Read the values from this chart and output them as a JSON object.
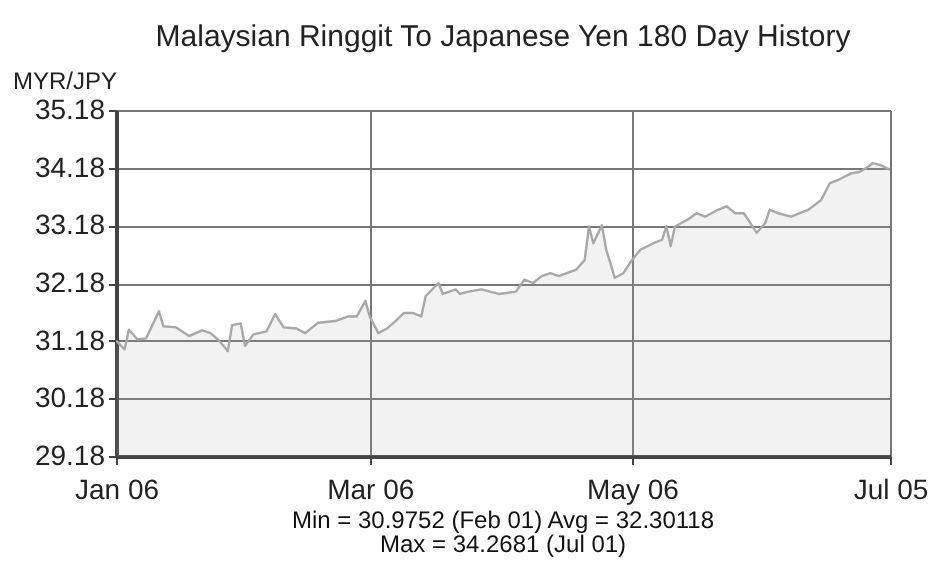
{
  "chart_data": {
    "type": "area",
    "title": "Malaysian Ringgit To Japanese Yen 180 Day History",
    "ylabel": "MYR/JPY",
    "annotations": [
      "Min = 30.9752 (Feb 01) Avg = 32.30118",
      "Max = 34.2681 (Jul 01)"
    ],
    "x": [
      "--01-06",
      "--01-08",
      "--01-09",
      "--01-11",
      "--01-13",
      "--01-16",
      "--01-17",
      "--01-20",
      "--01-23",
      "--01-26",
      "--01-28",
      "--01-30",
      "--02-01",
      "--02-02",
      "--02-04",
      "--02-05",
      "--02-07",
      "--02-10",
      "--02-12",
      "--02-14",
      "--02-17",
      "--02-19",
      "--02-22",
      "--02-26",
      "--03-01",
      "--03-03",
      "--03-05",
      "--03-06",
      "--03-08",
      "--03-10",
      "--03-12",
      "--03-14",
      "--03-16",
      "--03-18",
      "--03-19",
      "--03-22",
      "--03-23",
      "--03-26",
      "--03-27",
      "--03-29",
      "--04-01",
      "--04-05",
      "--04-09",
      "--04-11",
      "--04-13",
      "--04-15",
      "--04-17",
      "--04-19",
      "--04-23",
      "--04-25",
      "--04-26",
      "--04-27",
      "--04-29",
      "--04-30",
      "--05-02",
      "--05-04",
      "--05-06",
      "--05-08",
      "--05-11",
      "--05-13",
      "--05-14",
      "--05-15",
      "--05-16",
      "--05-19",
      "--05-21",
      "--05-23",
      "--05-26",
      "--05-28",
      "--05-30",
      "--06-01",
      "--06-02",
      "--06-04",
      "--06-06",
      "--06-07",
      "--06-09",
      "--06-12",
      "--06-14",
      "--06-16",
      "--06-19",
      "--06-21",
      "--06-23",
      "--06-26",
      "--06-28",
      "--06-30",
      "--07-01",
      "--07-03",
      "--07-05"
    ],
    "series": [
      {
        "color": "#a8a8a8",
        "values": [
          31.18,
          31.03,
          31.37,
          31.2,
          31.22,
          31.69,
          31.43,
          31.41,
          31.26,
          31.36,
          31.31,
          31.18,
          31.0,
          31.45,
          31.48,
          31.09,
          31.29,
          31.34,
          31.64,
          31.41,
          31.39,
          31.31,
          31.49,
          31.52,
          31.6,
          31.6,
          31.87,
          31.6,
          31.31,
          31.39,
          31.52,
          31.66,
          31.66,
          31.6,
          31.95,
          32.18,
          31.99,
          32.07,
          31.99,
          32.03,
          32.07,
          31.99,
          32.03,
          32.24,
          32.18,
          32.3,
          32.35,
          32.3,
          32.41,
          32.58,
          33.16,
          32.87,
          33.18,
          32.76,
          32.27,
          32.35,
          32.58,
          32.76,
          32.87,
          32.93,
          33.16,
          32.82,
          33.16,
          33.28,
          33.39,
          33.33,
          33.45,
          33.51,
          33.39,
          33.39,
          33.28,
          33.05,
          33.22,
          33.45,
          33.39,
          33.33,
          33.39,
          33.45,
          33.62,
          33.91,
          33.97,
          34.08,
          34.11,
          34.2,
          34.26,
          34.22,
          34.14
        ]
      }
    ],
    "xlim": [
      "--01-06",
      "--07-05"
    ],
    "xticks": [
      {
        "value": "--01-06",
        "label": "Jan 06"
      },
      {
        "value": "--03-06",
        "label": "Mar 06"
      },
      {
        "value": "--05-06",
        "label": "May 06"
      },
      {
        "value": "--07-05",
        "label": "Jul 05"
      }
    ],
    "ylim": [
      29.18,
      35.18
    ],
    "yticks": [
      29.18,
      30.18,
      31.18,
      32.18,
      33.18,
      34.18,
      35.18
    ],
    "grid": true
  }
}
